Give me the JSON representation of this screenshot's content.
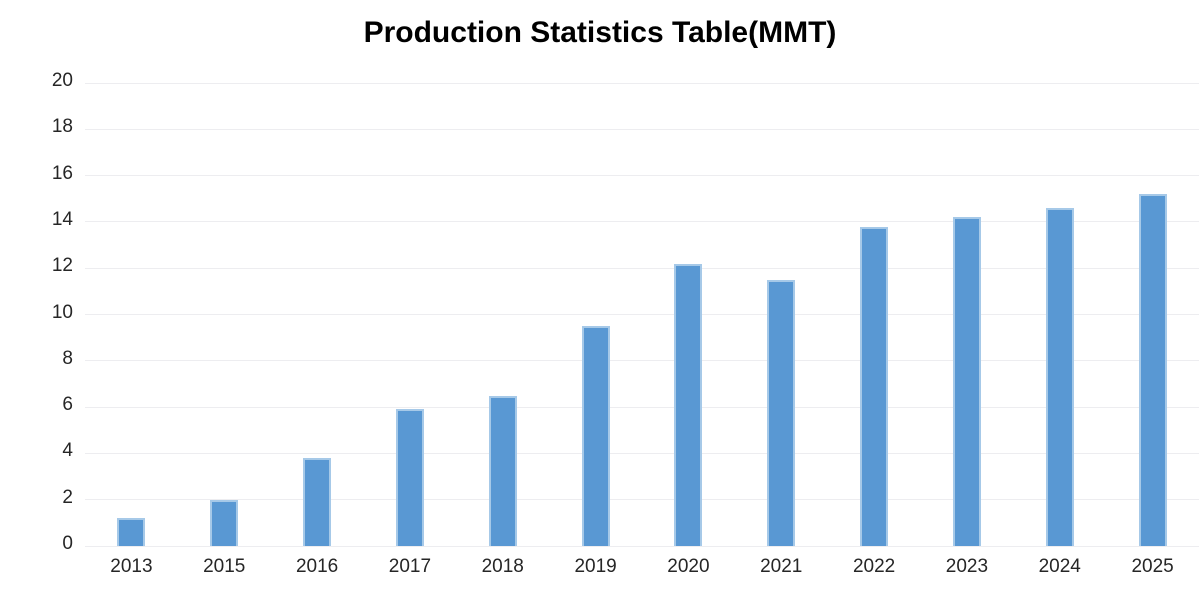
{
  "chart_data": {
    "type": "bar",
    "title": "Production Statistics Table(MMT)",
    "categories": [
      "2013",
      "2015",
      "2016",
      "2017",
      "2018",
      "2019",
      "2020",
      "2021",
      "2022",
      "2023",
      "2024",
      "2025"
    ],
    "values": [
      1.2,
      2,
      3.8,
      5.9,
      6.5,
      9.5,
      12.2,
      11.5,
      13.8,
      14.2,
      14.6,
      15.2
    ],
    "xlabel": "",
    "ylabel": "",
    "ylim": [
      0,
      20
    ],
    "ytick_step": 2,
    "yticks": [
      0,
      2,
      4,
      6,
      8,
      10,
      12,
      14,
      16,
      18,
      20
    ],
    "grid": true,
    "legend": "none",
    "colors": {
      "bar_fill": "#5998D3",
      "bar_border": "#A6C9E8",
      "gridline": "#EDEDF0",
      "tick_label": "#262626",
      "title": "#000000",
      "background": "#FFFFFF"
    }
  }
}
